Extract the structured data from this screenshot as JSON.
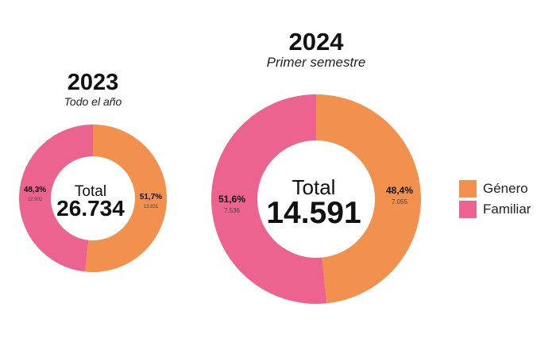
{
  "chart_data": [
    {
      "type": "pie",
      "title": "2023",
      "subtitle": "Todo el año",
      "total_label": "Total",
      "total_value": "26.734",
      "slices": [
        {
          "name": "Género",
          "percent": 51.7,
          "percent_label": "51,7%",
          "count_label": "13.831"
        },
        {
          "name": "Familiar",
          "percent": 48.3,
          "percent_label": "48,3%",
          "count_label": "12.902"
        }
      ]
    },
    {
      "type": "pie",
      "title": "2024",
      "subtitle": "Primer semestre",
      "total_label": "Total",
      "total_value": "14.591",
      "slices": [
        {
          "name": "Género",
          "percent": 48.4,
          "percent_label": "48,4%",
          "count_label": "7.055"
        },
        {
          "name": "Familiar",
          "percent": 51.6,
          "percent_label": "51,6%",
          "count_label": "7.536"
        }
      ]
    }
  ],
  "legend": [
    {
      "label": "Género",
      "color": "#F2914E"
    },
    {
      "label": "Familiar",
      "color": "#EC638F"
    }
  ]
}
